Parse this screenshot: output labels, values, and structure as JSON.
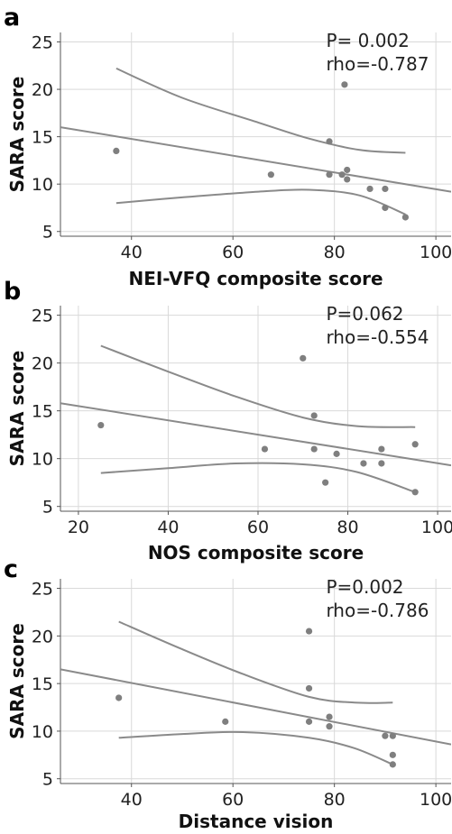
{
  "chart_data": [
    {
      "panel_label": "a",
      "type": "scatter",
      "xlabel": "NEI-VFQ composite score",
      "ylabel": "SARA score",
      "xlim": [
        26,
        103
      ],
      "ylim": [
        4.5,
        26
      ],
      "x_ticks": [
        40,
        60,
        80,
        100
      ],
      "y_ticks": [
        5,
        10,
        15,
        20,
        25
      ],
      "grid": true,
      "annotation": [
        "P= 0.002",
        "rho=-0.787"
      ],
      "points": [
        {
          "x": 37,
          "y": 13.5
        },
        {
          "x": 67.5,
          "y": 11
        },
        {
          "x": 79,
          "y": 14.5
        },
        {
          "x": 79,
          "y": 11
        },
        {
          "x": 81.5,
          "y": 11
        },
        {
          "x": 82,
          "y": 20.5
        },
        {
          "x": 82.5,
          "y": 11.5
        },
        {
          "x": 82.5,
          "y": 10.5
        },
        {
          "x": 87,
          "y": 9.5
        },
        {
          "x": 90,
          "y": 9.5
        },
        {
          "x": 90,
          "y": 7.5
        },
        {
          "x": 94,
          "y": 6.5
        }
      ],
      "fit_line": [
        [
          26,
          16
        ],
        [
          103,
          9.2
        ]
      ],
      "ci_upper": [
        [
          37,
          22.2
        ],
        [
          50,
          19.1
        ],
        [
          65,
          16.5
        ],
        [
          75,
          14.8
        ],
        [
          85,
          13.6
        ],
        [
          94,
          13.3
        ]
      ],
      "ci_lower": [
        [
          37,
          8
        ],
        [
          50,
          8.6
        ],
        [
          65,
          9.2
        ],
        [
          75,
          9.4
        ],
        [
          85,
          8.8
        ],
        [
          94,
          6.8
        ]
      ]
    },
    {
      "panel_label": "b",
      "type": "scatter",
      "xlabel": "NOS composite score",
      "ylabel": "SARA score",
      "xlim": [
        16,
        103
      ],
      "ylim": [
        4.5,
        26
      ],
      "x_ticks": [
        20,
        40,
        60,
        80,
        100
      ],
      "y_ticks": [
        5,
        10,
        15,
        20,
        25
      ],
      "grid": true,
      "annotation": [
        "P=0.062",
        "rho=-0.554"
      ],
      "points": [
        {
          "x": 25,
          "y": 13.5
        },
        {
          "x": 61.5,
          "y": 11
        },
        {
          "x": 70,
          "y": 20.5
        },
        {
          "x": 72.5,
          "y": 14.5
        },
        {
          "x": 72.5,
          "y": 11
        },
        {
          "x": 75,
          "y": 7.5
        },
        {
          "x": 77.5,
          "y": 10.5
        },
        {
          "x": 83.5,
          "y": 9.5
        },
        {
          "x": 87.5,
          "y": 11
        },
        {
          "x": 87.5,
          "y": 9.5
        },
        {
          "x": 95,
          "y": 11.5
        },
        {
          "x": 95,
          "y": 6.5
        }
      ],
      "fit_line": [
        [
          16,
          15.8
        ],
        [
          103,
          9.3
        ]
      ],
      "ci_upper": [
        [
          25,
          21.8
        ],
        [
          40,
          19.1
        ],
        [
          55,
          16.5
        ],
        [
          70,
          14.3
        ],
        [
          82,
          13.4
        ],
        [
          95,
          13.3
        ]
      ],
      "ci_lower": [
        [
          25,
          8.5
        ],
        [
          40,
          9
        ],
        [
          55,
          9.5
        ],
        [
          70,
          9.4
        ],
        [
          82,
          8.6
        ],
        [
          95,
          6.5
        ]
      ]
    },
    {
      "panel_label": "c",
      "type": "scatter",
      "xlabel": "Distance vision",
      "ylabel": "SARA score",
      "xlim": [
        26,
        103
      ],
      "ylim": [
        4.5,
        26
      ],
      "x_ticks": [
        40,
        60,
        80,
        100
      ],
      "y_ticks": [
        5,
        10,
        15,
        20,
        25
      ],
      "grid": true,
      "annotation": [
        "P=0.002",
        "rho=-0.786"
      ],
      "points": [
        {
          "x": 37.5,
          "y": 13.5
        },
        {
          "x": 58.5,
          "y": 11
        },
        {
          "x": 75,
          "y": 20.5
        },
        {
          "x": 75,
          "y": 14.5
        },
        {
          "x": 75,
          "y": 11
        },
        {
          "x": 79,
          "y": 11.5
        },
        {
          "x": 79,
          "y": 10.5
        },
        {
          "x": 90,
          "y": 9.5
        },
        {
          "x": 91.5,
          "y": 9.5
        },
        {
          "x": 91.5,
          "y": 7.5
        },
        {
          "x": 91.5,
          "y": 6.5
        }
      ],
      "fit_line": [
        [
          26,
          16.5
        ],
        [
          103,
          8.6
        ]
      ],
      "ci_upper": [
        [
          37.5,
          21.5
        ],
        [
          50,
          18.6
        ],
        [
          62,
          16
        ],
        [
          75,
          13.6
        ],
        [
          84,
          13
        ],
        [
          91.5,
          13
        ]
      ],
      "ci_lower": [
        [
          37.5,
          9.3
        ],
        [
          50,
          9.7
        ],
        [
          62,
          9.9
        ],
        [
          75,
          9.3
        ],
        [
          84,
          8.2
        ],
        [
          91.5,
          6.5
        ]
      ]
    }
  ],
  "colors": {
    "point": "#7f7f7f",
    "line": "#8a8a8a",
    "grid": "#d9d9d9",
    "axis": "#555555",
    "text": "#222222"
  }
}
